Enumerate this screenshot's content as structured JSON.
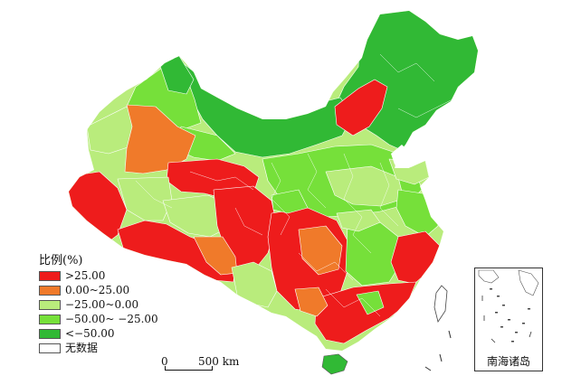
{
  "legend": {
    "title": "比例(%)",
    "classes": [
      {
        "label": ">25.00",
        "color": "#ee1c1c"
      },
      {
        "label": "0.00~25.00",
        "color": "#f07a2a"
      },
      {
        "label": "−25.00~0.00",
        "color": "#b9ec7c"
      },
      {
        "label": "−50.00~ −25.00",
        "color": "#76e03a"
      },
      {
        "label": "<−50.00",
        "color": "#31b935"
      },
      {
        "label": "无数据",
        "color": "#ffffff"
      }
    ]
  },
  "scale_bar": {
    "zero": "0",
    "end": "500 km"
  },
  "inset": {
    "title": "南海诸岛"
  },
  "colors": {
    "boundary": "#ffffff",
    "dark_green": "#31b935",
    "green": "#76e03a",
    "light_green": "#b9ec7c",
    "orange": "#f07a2a",
    "red": "#ee1c1c"
  }
}
